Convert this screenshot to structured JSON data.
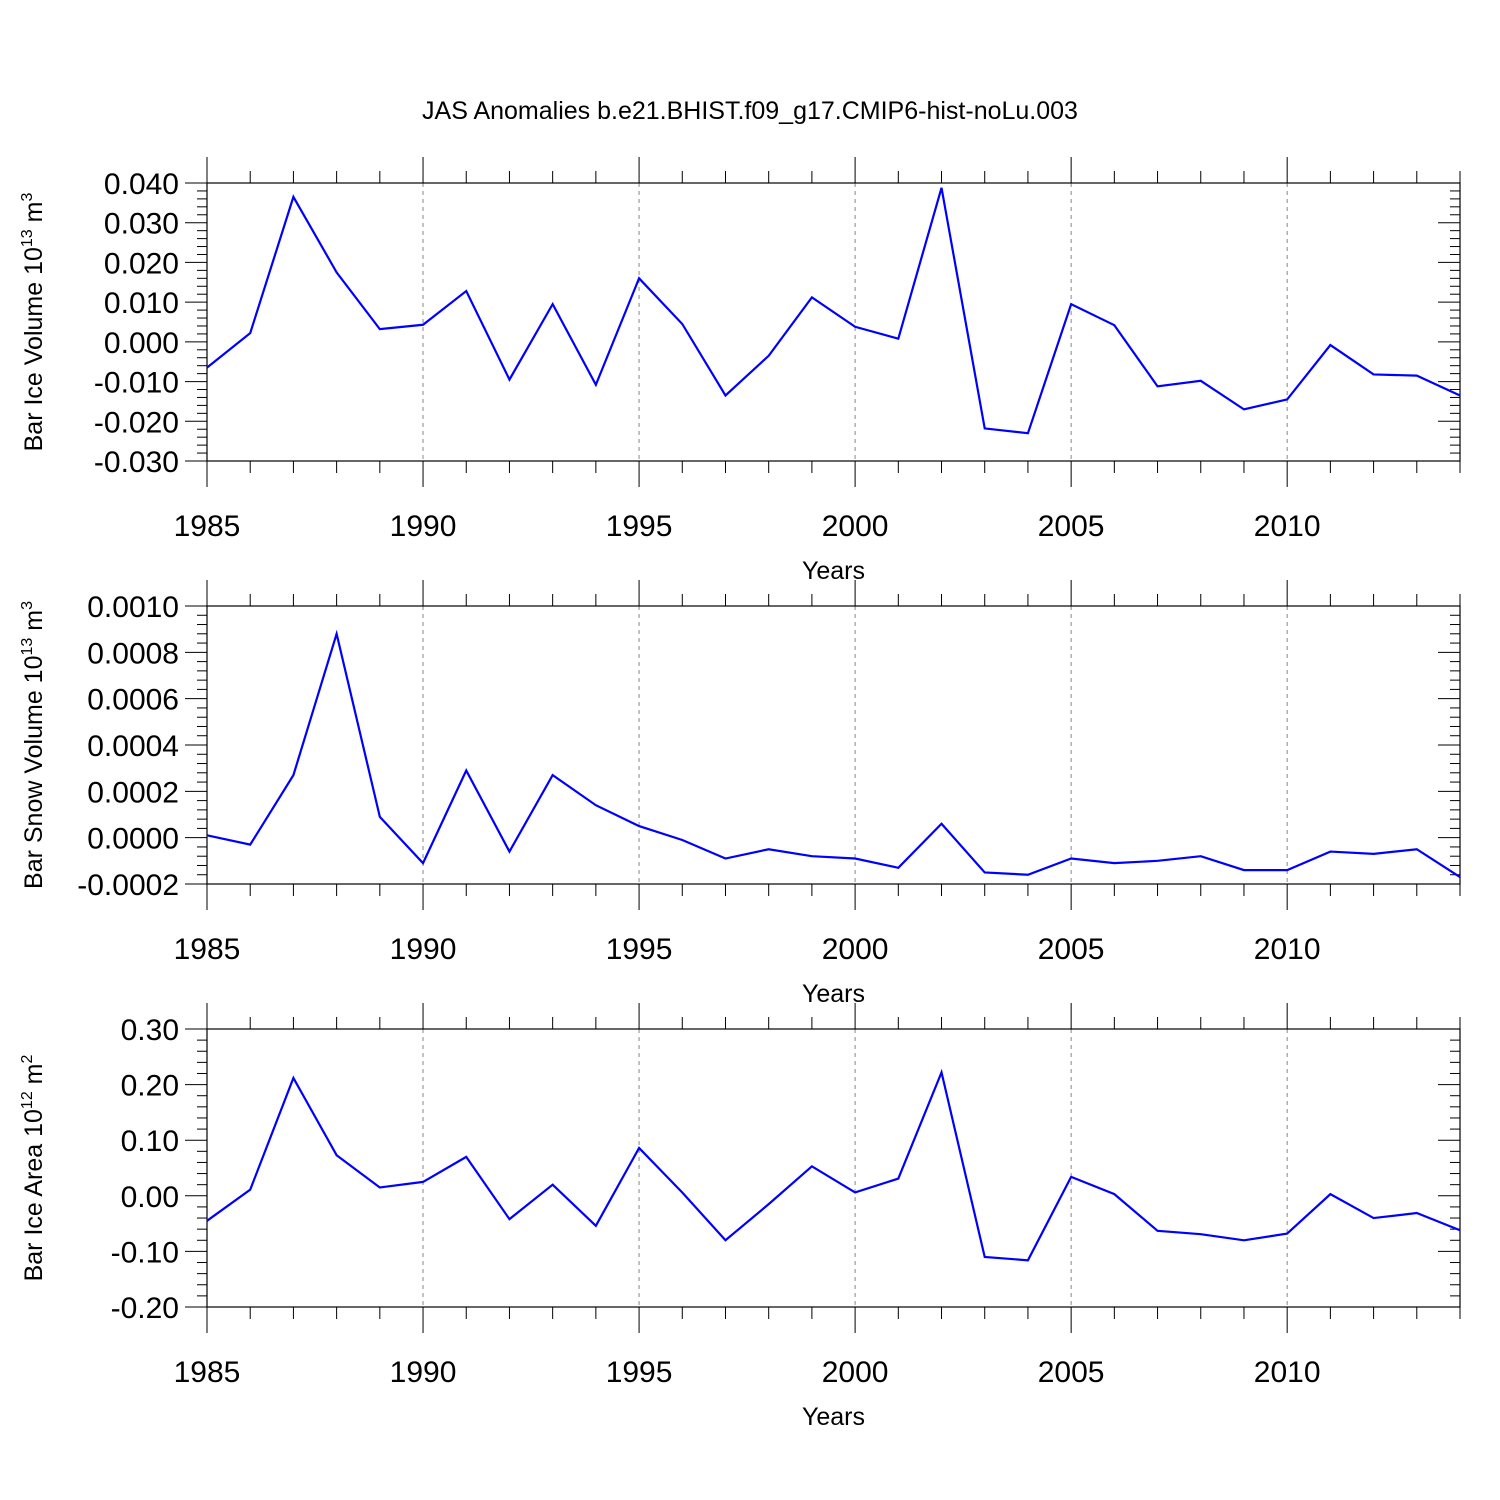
{
  "title": "JAS Anomalies b.e21.BHIST.f09_g17.CMIP6-hist-noLu.003",
  "line_color": "#0000ff",
  "chart_data": [
    {
      "type": "line",
      "xlabel": "Years",
      "ylabel": {
        "text": "Bar Ice Volume 10",
        "sup": "13",
        "unit": " m",
        "unit_sup": "3"
      },
      "xlim": [
        1985,
        2014
      ],
      "ylim": [
        -0.03,
        0.04
      ],
      "xticks": [
        1985,
        1990,
        1995,
        2000,
        2005,
        2010
      ],
      "xtick_labels": [
        "1985",
        "1990",
        "1995",
        "2000",
        "2005",
        "2010"
      ],
      "yticks": [
        -0.03,
        -0.02,
        -0.01,
        0.0,
        0.01,
        0.02,
        0.03,
        0.04
      ],
      "ytick_labels": [
        "-0.030",
        "-0.020",
        "-0.010",
        "0.000",
        "0.010",
        "0.020",
        "0.030",
        "0.040"
      ],
      "grid": "vertical dashed at labeled years",
      "x": [
        1985,
        1986,
        1987,
        1988,
        1989,
        1990,
        1991,
        1992,
        1993,
        1994,
        1995,
        1996,
        1997,
        1998,
        1999,
        2000,
        2001,
        2002,
        2003,
        2004,
        2005,
        2006,
        2007,
        2008,
        2009,
        2010,
        2011,
        2012,
        2013,
        2014
      ],
      "values": [
        -0.0065,
        0.0022,
        0.0365,
        0.0175,
        0.0032,
        0.0043,
        0.0128,
        -0.0095,
        0.0095,
        -0.0108,
        0.016,
        0.0045,
        -0.0135,
        -0.0035,
        0.0112,
        0.0038,
        0.0008,
        0.0388,
        -0.0218,
        -0.023,
        0.0095,
        0.0042,
        -0.0112,
        -0.0098,
        -0.017,
        -0.0145,
        -0.0008,
        -0.0082,
        -0.0085,
        -0.0135
      ]
    },
    {
      "type": "line",
      "xlabel": "Years",
      "ylabel": {
        "text": "Bar Snow Volume 10",
        "sup": "13",
        "unit": " m",
        "unit_sup": "3"
      },
      "xlim": [
        1985,
        2014
      ],
      "ylim": [
        -0.0002,
        0.001
      ],
      "xticks": [
        1985,
        1990,
        1995,
        2000,
        2005,
        2010
      ],
      "xtick_labels": [
        "1985",
        "1990",
        "1995",
        "2000",
        "2005",
        "2010"
      ],
      "yticks": [
        -0.0002,
        0.0,
        0.0002,
        0.0004,
        0.0006,
        0.0008,
        0.001
      ],
      "ytick_labels": [
        "-0.0002",
        "0.0000",
        "0.0002",
        "0.0004",
        "0.0006",
        "0.0008",
        "0.0010"
      ],
      "grid": "vertical dashed at labeled years",
      "x": [
        1985,
        1986,
        1987,
        1988,
        1989,
        1990,
        1991,
        1992,
        1993,
        1994,
        1995,
        1996,
        1997,
        1998,
        1999,
        2000,
        2001,
        2002,
        2003,
        2004,
        2005,
        2006,
        2007,
        2008,
        2009,
        2010,
        2011,
        2012,
        2013,
        2014
      ],
      "values": [
        1e-05,
        -3e-05,
        0.00027,
        0.00088,
        9e-05,
        -0.00011,
        0.00029,
        -6e-05,
        0.00027,
        0.00014,
        5e-05,
        -1e-05,
        -9e-05,
        -5e-05,
        -8e-05,
        -9e-05,
        -0.00013,
        6e-05,
        -0.00015,
        -0.00016,
        -9e-05,
        -0.00011,
        -0.0001,
        -8e-05,
        -0.00014,
        -0.00014,
        -6e-05,
        -7e-05,
        -5e-05,
        -0.00017
      ]
    },
    {
      "type": "line",
      "xlabel": "Years",
      "ylabel": {
        "text": "Bar Ice Area 10",
        "sup": "12",
        "unit": " m",
        "unit_sup": "2"
      },
      "xlim": [
        1985,
        2014
      ],
      "ylim": [
        -0.2,
        0.3
      ],
      "xticks": [
        1985,
        1990,
        1995,
        2000,
        2005,
        2010
      ],
      "xtick_labels": [
        "1985",
        "1990",
        "1995",
        "2000",
        "2005",
        "2010"
      ],
      "yticks": [
        -0.2,
        -0.1,
        0.0,
        0.1,
        0.2,
        0.3
      ],
      "ytick_labels": [
        "-0.20",
        "-0.10",
        "0.00",
        "0.10",
        "0.20",
        "0.30"
      ],
      "grid": "vertical dashed at labeled years",
      "x": [
        1985,
        1986,
        1987,
        1988,
        1989,
        1990,
        1991,
        1992,
        1993,
        1994,
        1995,
        1996,
        1997,
        1998,
        1999,
        2000,
        2001,
        2002,
        2003,
        2004,
        2005,
        2006,
        2007,
        2008,
        2009,
        2010,
        2011,
        2012,
        2013,
        2014
      ],
      "values": [
        -0.045,
        0.011,
        0.212,
        0.073,
        0.015,
        0.025,
        0.07,
        -0.042,
        0.02,
        -0.054,
        0.086,
        0.006,
        -0.08,
        -0.015,
        0.053,
        0.006,
        0.031,
        0.222,
        -0.11,
        -0.116,
        0.034,
        0.003,
        -0.063,
        -0.069,
        -0.08,
        -0.068,
        0.003,
        -0.04,
        -0.031,
        -0.062
      ]
    }
  ]
}
